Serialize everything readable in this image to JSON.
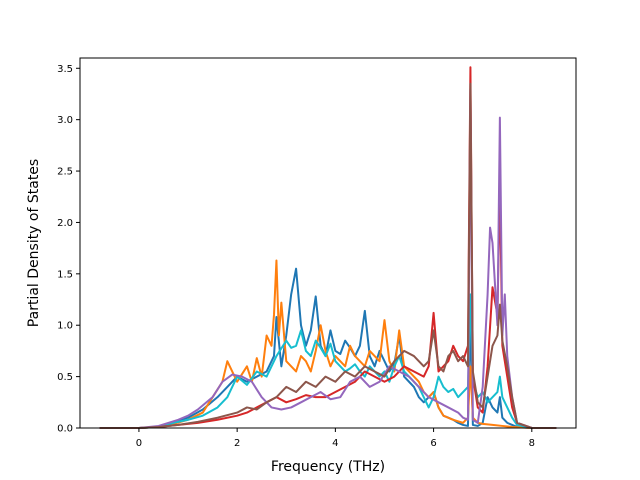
{
  "chart_data": {
    "type": "line",
    "title": "",
    "xlabel": "Frequency (THz)",
    "ylabel": "Partial Density of States",
    "xlim": [
      -1.2,
      8.9
    ],
    "ylim": [
      0,
      3.6
    ],
    "xticks": [
      0,
      2,
      4,
      6,
      8
    ],
    "xtick_labels": [
      "0",
      "2",
      "4",
      "6",
      "8"
    ],
    "yticks": [
      0,
      0.5,
      1.0,
      1.5,
      2.0,
      2.5,
      3.0,
      3.5
    ],
    "ytick_labels": [
      "0.0",
      "0.5",
      "1.0",
      "1.5",
      "2.0",
      "2.5",
      "3.0",
      "3.5"
    ],
    "grid": false,
    "legend": "none",
    "series": [
      {
        "color": "#1f77b4",
        "x": [
          -0.8,
          0.0,
          0.4,
          0.7,
          1.0,
          1.3,
          1.6,
          1.8,
          2.0,
          2.2,
          2.4,
          2.6,
          2.75,
          2.8,
          2.9,
          3.0,
          3.1,
          3.2,
          3.3,
          3.4,
          3.5,
          3.6,
          3.7,
          3.8,
          3.9,
          4.0,
          4.1,
          4.2,
          4.3,
          4.4,
          4.5,
          4.6,
          4.7,
          4.8,
          4.9,
          5.0,
          5.1,
          5.2,
          5.3,
          5.4,
          5.5,
          5.6,
          5.7,
          5.8,
          5.9,
          6.0,
          6.1,
          6.2,
          6.3,
          6.4,
          6.5,
          6.6,
          6.7,
          6.75,
          6.8,
          6.9,
          7.0,
          7.1,
          7.2,
          7.3,
          7.35,
          7.4,
          7.5,
          7.6,
          7.7,
          8.0,
          8.5
        ],
        "values": [
          0,
          0,
          0.01,
          0.06,
          0.1,
          0.18,
          0.3,
          0.4,
          0.5,
          0.45,
          0.5,
          0.55,
          0.7,
          1.08,
          0.6,
          0.9,
          1.3,
          1.55,
          1.0,
          0.8,
          0.95,
          1.28,
          0.8,
          0.7,
          0.95,
          0.75,
          0.72,
          0.85,
          0.78,
          0.7,
          0.8,
          1.14,
          0.7,
          0.6,
          0.75,
          0.65,
          0.55,
          0.62,
          0.9,
          0.5,
          0.45,
          0.4,
          0.3,
          0.25,
          0.3,
          0.35,
          0.2,
          0.12,
          0.1,
          0.08,
          0.05,
          0.03,
          0.02,
          1.1,
          0.03,
          0.02,
          0.05,
          0.3,
          0.2,
          0.15,
          0.3,
          0.1,
          0.05,
          0.03,
          0.01,
          0,
          0
        ]
      },
      {
        "color": "#ff7f0e",
        "x": [
          -0.8,
          0.0,
          0.4,
          0.7,
          1.0,
          1.3,
          1.5,
          1.7,
          1.8,
          2.0,
          2.2,
          2.3,
          2.4,
          2.5,
          2.6,
          2.7,
          2.75,
          2.8,
          2.85,
          2.9,
          3.0,
          3.1,
          3.2,
          3.3,
          3.4,
          3.5,
          3.6,
          3.7,
          3.8,
          3.9,
          4.0,
          4.1,
          4.2,
          4.3,
          4.4,
          4.5,
          4.6,
          4.7,
          4.8,
          4.9,
          5.0,
          5.1,
          5.2,
          5.3,
          5.4,
          5.5,
          5.6,
          5.7,
          5.8,
          5.9,
          6.0,
          6.1,
          6.2,
          6.4,
          6.6,
          6.7,
          6.75,
          6.8,
          6.9,
          7.0,
          7.2,
          7.4,
          7.6,
          8.0,
          8.5
        ],
        "values": [
          0,
          0,
          0.01,
          0.04,
          0.08,
          0.15,
          0.3,
          0.45,
          0.65,
          0.45,
          0.6,
          0.45,
          0.68,
          0.5,
          0.9,
          0.8,
          1.1,
          1.63,
          0.9,
          1.22,
          0.65,
          0.6,
          0.55,
          0.7,
          0.65,
          0.55,
          0.75,
          1.0,
          0.75,
          0.6,
          0.7,
          0.65,
          0.6,
          0.8,
          0.7,
          0.65,
          0.6,
          0.75,
          0.7,
          0.65,
          1.05,
          0.65,
          0.55,
          0.95,
          0.6,
          0.55,
          0.5,
          0.45,
          0.35,
          0.3,
          0.35,
          0.2,
          0.12,
          0.08,
          0.05,
          0.1,
          0.6,
          0.1,
          0.05,
          0.04,
          0.03,
          0.02,
          0.01,
          0,
          0
        ]
      },
      {
        "color": "#17becf",
        "x": [
          -0.8,
          0.0,
          0.4,
          0.7,
          1.0,
          1.3,
          1.6,
          1.8,
          2.0,
          2.2,
          2.4,
          2.6,
          2.8,
          3.0,
          3.1,
          3.2,
          3.3,
          3.4,
          3.5,
          3.6,
          3.7,
          3.8,
          3.9,
          4.0,
          4.1,
          4.2,
          4.3,
          4.4,
          4.5,
          4.6,
          4.7,
          4.8,
          4.9,
          5.0,
          5.1,
          5.2,
          5.3,
          5.4,
          5.5,
          5.6,
          5.7,
          5.8,
          5.9,
          6.0,
          6.1,
          6.2,
          6.3,
          6.4,
          6.5,
          6.6,
          6.7,
          6.75,
          6.8,
          6.9,
          7.0,
          7.1,
          7.2,
          7.3,
          7.35,
          7.4,
          7.5,
          7.6,
          7.7,
          8.0,
          8.5
        ],
        "values": [
          0,
          0,
          0.01,
          0.05,
          0.08,
          0.12,
          0.2,
          0.3,
          0.5,
          0.42,
          0.55,
          0.5,
          0.7,
          0.85,
          0.78,
          0.8,
          0.95,
          0.75,
          0.7,
          0.85,
          0.78,
          0.7,
          0.82,
          0.65,
          0.6,
          0.55,
          0.58,
          0.62,
          0.55,
          0.5,
          0.6,
          0.55,
          0.5,
          0.55,
          0.45,
          0.6,
          0.7,
          0.55,
          0.5,
          0.45,
          0.4,
          0.3,
          0.2,
          0.3,
          0.5,
          0.4,
          0.35,
          0.38,
          0.3,
          0.35,
          0.4,
          1.3,
          0.45,
          0.3,
          0.35,
          0.25,
          0.3,
          0.35,
          0.5,
          0.3,
          0.2,
          0.1,
          0.03,
          0,
          0
        ]
      },
      {
        "color": "#d62728",
        "x": [
          -0.8,
          0.0,
          0.4,
          0.8,
          1.2,
          1.6,
          2.0,
          2.2,
          2.4,
          2.6,
          2.8,
          3.0,
          3.2,
          3.4,
          3.6,
          3.8,
          4.0,
          4.2,
          4.4,
          4.6,
          4.8,
          5.0,
          5.2,
          5.4,
          5.6,
          5.8,
          5.9,
          6.0,
          6.1,
          6.2,
          6.3,
          6.4,
          6.5,
          6.6,
          6.7,
          6.75,
          6.8,
          6.9,
          7.0,
          7.1,
          7.2,
          7.3,
          7.35,
          7.4,
          7.5,
          7.6,
          7.7,
          8.0,
          8.5
        ],
        "values": [
          0,
          0,
          0.01,
          0.03,
          0.05,
          0.08,
          0.12,
          0.15,
          0.2,
          0.25,
          0.3,
          0.25,
          0.28,
          0.32,
          0.3,
          0.3,
          0.35,
          0.4,
          0.45,
          0.55,
          0.5,
          0.45,
          0.5,
          0.6,
          0.55,
          0.5,
          0.6,
          1.12,
          0.55,
          0.6,
          0.65,
          0.8,
          0.7,
          0.65,
          0.8,
          3.51,
          0.5,
          0.2,
          0.15,
          0.6,
          1.37,
          1.1,
          2.38,
          0.8,
          0.5,
          0.2,
          0.05,
          0,
          0
        ]
      },
      {
        "color": "#9467bd",
        "x": [
          -0.8,
          0.0,
          0.4,
          0.8,
          1.0,
          1.2,
          1.5,
          1.7,
          1.9,
          2.1,
          2.3,
          2.5,
          2.7,
          2.9,
          3.1,
          3.3,
          3.5,
          3.7,
          3.9,
          4.1,
          4.3,
          4.5,
          4.7,
          4.9,
          5.1,
          5.3,
          5.5,
          5.7,
          5.9,
          6.1,
          6.3,
          6.5,
          6.6,
          6.7,
          6.75,
          6.8,
          6.9,
          7.0,
          7.1,
          7.15,
          7.2,
          7.3,
          7.35,
          7.4,
          7.45,
          7.5,
          7.6,
          7.7,
          8.0,
          8.5
        ],
        "values": [
          0,
          0,
          0.02,
          0.08,
          0.12,
          0.18,
          0.3,
          0.45,
          0.52,
          0.5,
          0.45,
          0.3,
          0.2,
          0.18,
          0.2,
          0.25,
          0.3,
          0.35,
          0.28,
          0.3,
          0.45,
          0.5,
          0.4,
          0.45,
          0.6,
          0.55,
          0.5,
          0.4,
          0.3,
          0.25,
          0.2,
          0.15,
          0.1,
          0.08,
          3.3,
          0.08,
          0.05,
          0.4,
          1.3,
          1.95,
          1.8,
          1.0,
          3.02,
          0.9,
          1.3,
          0.7,
          0.3,
          0.05,
          0,
          0
        ]
      },
      {
        "color": "#8c564b",
        "x": [
          -0.8,
          0.0,
          0.4,
          0.8,
          1.2,
          1.6,
          2.0,
          2.2,
          2.4,
          2.6,
          2.8,
          3.0,
          3.2,
          3.4,
          3.6,
          3.8,
          4.0,
          4.2,
          4.4,
          4.6,
          4.8,
          5.0,
          5.2,
          5.4,
          5.6,
          5.8,
          5.9,
          6.0,
          6.1,
          6.2,
          6.3,
          6.4,
          6.5,
          6.6,
          6.7,
          6.75,
          6.8,
          6.9,
          7.0,
          7.1,
          7.2,
          7.3,
          7.35,
          7.4,
          7.5,
          7.6,
          7.7,
          8.0,
          8.5
        ],
        "values": [
          0,
          0,
          0.01,
          0.03,
          0.06,
          0.1,
          0.15,
          0.2,
          0.18,
          0.25,
          0.3,
          0.4,
          0.35,
          0.45,
          0.4,
          0.5,
          0.45,
          0.55,
          0.5,
          0.6,
          0.55,
          0.5,
          0.65,
          0.75,
          0.7,
          0.6,
          0.65,
          0.95,
          0.6,
          0.55,
          0.7,
          0.75,
          0.65,
          0.7,
          0.6,
          3.35,
          0.55,
          0.25,
          0.2,
          0.5,
          0.8,
          0.9,
          1.2,
          0.85,
          0.6,
          0.3,
          0.05,
          0,
          0
        ]
      }
    ]
  }
}
